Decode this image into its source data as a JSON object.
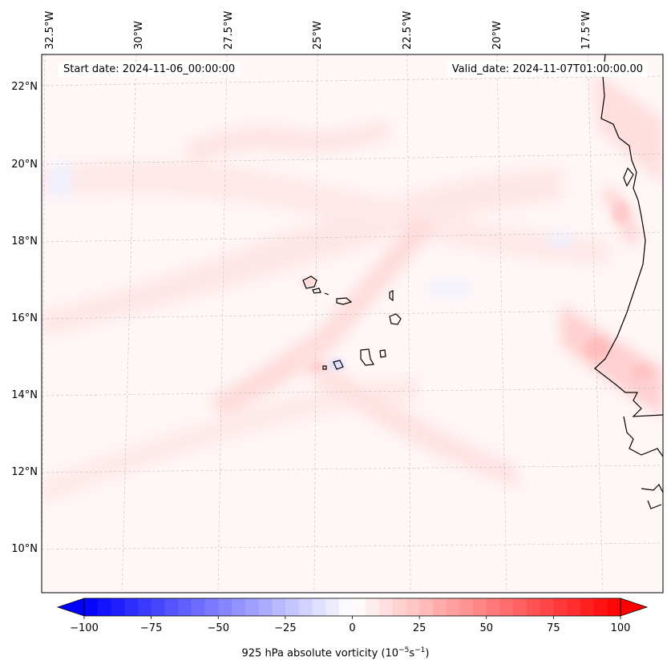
{
  "map": {
    "start_date": "Start date: 2024-11-06_00:00:00",
    "valid_date": "Valid_date: 2024-11-07T01:00:00.00",
    "lon_labels": [
      "32.5°W",
      "30°W",
      "27.5°W",
      "25°W",
      "22.5°W",
      "20°W",
      "17.5°W"
    ],
    "lat_labels": [
      "22°N",
      "20°N",
      "18°N",
      "16°N",
      "14°N",
      "12°N",
      "10°N"
    ],
    "gridlines": true
  },
  "colorbar": {
    "title_main": "925 hPa absolute vorticity (10",
    "title_sup1": "−5",
    "title_mid": "s",
    "title_sup2": "−1",
    "title_end": ")",
    "ticks": [
      "−100",
      "−75",
      "−50",
      "−25",
      "0",
      "25",
      "50",
      "75",
      "100"
    ],
    "min": -100,
    "max": 100,
    "colors": {
      "low": "#0000ff",
      "mid": "#ffffff",
      "high": "#ff0000"
    }
  }
}
